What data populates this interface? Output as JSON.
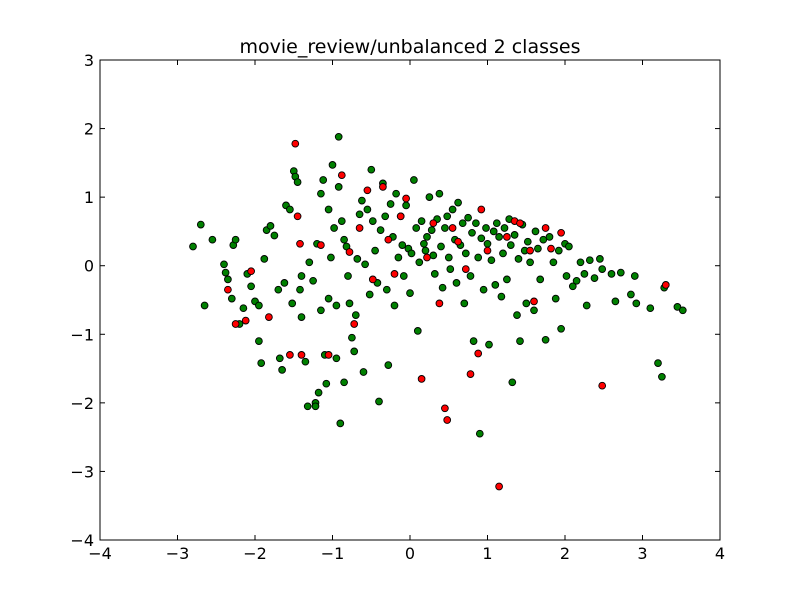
{
  "chart_data": {
    "type": "scatter",
    "title": "movie_review/unbalanced 2 classes",
    "xlabel": "",
    "ylabel": "",
    "xlim": [
      -4,
      4
    ],
    "ylim": [
      -4,
      3
    ],
    "xticks": [
      "−4",
      "−3",
      "−2",
      "−1",
      "0",
      "1",
      "2",
      "3",
      "4"
    ],
    "yticks": [
      "−4",
      "−3",
      "−2",
      "−1",
      "0",
      "1",
      "2",
      "3"
    ],
    "grid": false,
    "legend": "none",
    "colors": {
      "class_green": "#008000",
      "class_red": "#ff0000",
      "edge": "#000000"
    },
    "series": [
      {
        "color": "#008000",
        "points": [
          [
            -2.8,
            0.28
          ],
          [
            -2.7,
            0.6
          ],
          [
            -2.65,
            -0.58
          ],
          [
            -2.55,
            0.38
          ],
          [
            -2.4,
            0.02
          ],
          [
            -2.38,
            -0.1
          ],
          [
            -2.35,
            -0.2
          ],
          [
            -2.3,
            -0.48
          ],
          [
            -2.28,
            0.3
          ],
          [
            -2.25,
            0.38
          ],
          [
            -2.2,
            -0.85
          ],
          [
            -2.15,
            -0.62
          ],
          [
            -2.1,
            -0.12
          ],
          [
            -2.05,
            -0.3
          ],
          [
            -2.0,
            -0.52
          ],
          [
            -1.95,
            -0.58
          ],
          [
            -1.95,
            -1.1
          ],
          [
            -1.92,
            -1.42
          ],
          [
            -1.88,
            0.1
          ],
          [
            -1.85,
            0.52
          ],
          [
            -1.8,
            0.58
          ],
          [
            -1.75,
            0.44
          ],
          [
            -1.7,
            -0.35
          ],
          [
            -1.68,
            -1.35
          ],
          [
            -1.65,
            -1.52
          ],
          [
            -1.62,
            -0.25
          ],
          [
            -1.6,
            0.88
          ],
          [
            -1.55,
            0.82
          ],
          [
            -1.52,
            -0.55
          ],
          [
            -1.5,
            1.38
          ],
          [
            -1.48,
            1.3
          ],
          [
            -1.45,
            1.22
          ],
          [
            -1.42,
            -0.35
          ],
          [
            -1.4,
            -0.15
          ],
          [
            -1.4,
            -0.75
          ],
          [
            -1.35,
            -1.4
          ],
          [
            -1.32,
            -2.05
          ],
          [
            -1.3,
            0.05
          ],
          [
            -1.25,
            -0.22
          ],
          [
            -1.22,
            -2.0
          ],
          [
            -1.22,
            -2.05
          ],
          [
            -1.2,
            0.32
          ],
          [
            -1.18,
            -1.85
          ],
          [
            -1.15,
            -0.65
          ],
          [
            -1.15,
            1.05
          ],
          [
            -1.12,
            1.25
          ],
          [
            -1.1,
            -1.3
          ],
          [
            -1.08,
            -1.72
          ],
          [
            -1.05,
            0.82
          ],
          [
            -1.05,
            -0.48
          ],
          [
            -1.02,
            0.12
          ],
          [
            -1.0,
            1.47
          ],
          [
            -0.98,
            0.55
          ],
          [
            -0.95,
            -0.58
          ],
          [
            -0.95,
            -1.35
          ],
          [
            -0.92,
            1.88
          ],
          [
            -0.92,
            1.15
          ],
          [
            -0.9,
            -2.3
          ],
          [
            -0.88,
            0.65
          ],
          [
            -0.85,
            0.38
          ],
          [
            -0.85,
            -1.7
          ],
          [
            -0.82,
            0.28
          ],
          [
            -0.8,
            -0.15
          ],
          [
            -0.78,
            -0.55
          ],
          [
            -0.75,
            -1.05
          ],
          [
            -0.72,
            -1.25
          ],
          [
            -0.7,
            -0.72
          ],
          [
            -0.68,
            0.1
          ],
          [
            -0.65,
            0.75
          ],
          [
            -0.62,
            0.95
          ],
          [
            -0.6,
            -1.55
          ],
          [
            -0.58,
            0.02
          ],
          [
            -0.55,
            0.82
          ],
          [
            -0.52,
            -0.42
          ],
          [
            -0.5,
            1.4
          ],
          [
            -0.48,
            0.65
          ],
          [
            -0.45,
            0.22
          ],
          [
            -0.42,
            -0.25
          ],
          [
            -0.4,
            -1.98
          ],
          [
            -0.38,
            0.52
          ],
          [
            -0.35,
            1.2
          ],
          [
            -0.32,
            0.72
          ],
          [
            -0.3,
            -0.35
          ],
          [
            -0.28,
            -1.45
          ],
          [
            -0.25,
            0.9
          ],
          [
            -0.22,
            0.42
          ],
          [
            -0.2,
            -0.58
          ],
          [
            -0.18,
            1.05
          ],
          [
            -0.15,
            0.12
          ],
          [
            -0.12,
            0.72
          ],
          [
            -0.1,
            0.3
          ],
          [
            -0.08,
            -0.15
          ],
          [
            -0.05,
            0.88
          ],
          [
            -0.02,
            0.25
          ],
          [
            0.0,
            -0.4
          ],
          [
            0.02,
            0.18
          ],
          [
            0.05,
            1.25
          ],
          [
            0.08,
            0.55
          ],
          [
            0.1,
            -0.95
          ],
          [
            0.12,
            0.05
          ],
          [
            0.15,
            0.65
          ],
          [
            0.18,
            0.32
          ],
          [
            0.2,
            0.22
          ],
          [
            0.22,
            0.42
          ],
          [
            0.25,
            1.0
          ],
          [
            0.28,
            0.52
          ],
          [
            0.3,
            0.15
          ],
          [
            0.32,
            -0.12
          ],
          [
            0.35,
            0.68
          ],
          [
            0.38,
            1.05
          ],
          [
            0.4,
            0.28
          ],
          [
            0.42,
            -0.32
          ],
          [
            0.45,
            0.55
          ],
          [
            0.48,
            0.72
          ],
          [
            0.5,
            0.12
          ],
          [
            0.52,
            -0.05
          ],
          [
            0.55,
            0.82
          ],
          [
            0.58,
            0.38
          ],
          [
            0.6,
            -0.25
          ],
          [
            0.62,
            0.92
          ],
          [
            0.65,
            0.3
          ],
          [
            0.68,
            0.62
          ],
          [
            0.7,
            -0.55
          ],
          [
            0.72,
            0.18
          ],
          [
            0.75,
            0.7
          ],
          [
            0.78,
            -0.15
          ],
          [
            0.8,
            0.48
          ],
          [
            0.82,
            -1.1
          ],
          [
            0.85,
            0.62
          ],
          [
            0.88,
            0.12
          ],
          [
            0.9,
            -2.45
          ],
          [
            0.92,
            0.4
          ],
          [
            0.95,
            -0.35
          ],
          [
            0.98,
            0.55
          ],
          [
            1.0,
            0.32
          ],
          [
            1.02,
            -1.15
          ],
          [
            1.05,
            0.08
          ],
          [
            1.08,
            0.5
          ],
          [
            1.1,
            -0.28
          ],
          [
            1.12,
            0.62
          ],
          [
            1.15,
            0.42
          ],
          [
            1.18,
            -0.45
          ],
          [
            1.2,
            0.18
          ],
          [
            1.22,
            0.55
          ],
          [
            1.25,
            -0.2
          ],
          [
            1.28,
            0.68
          ],
          [
            1.3,
            0.3
          ],
          [
            1.32,
            -1.7
          ],
          [
            1.35,
            0.45
          ],
          [
            1.38,
            -0.72
          ],
          [
            1.4,
            0.1
          ],
          [
            1.42,
            -1.1
          ],
          [
            1.45,
            0.6
          ],
          [
            1.48,
            0.22
          ],
          [
            1.5,
            -0.55
          ],
          [
            1.52,
            0.35
          ],
          [
            1.55,
            0.05
          ],
          [
            1.6,
            -0.65
          ],
          [
            1.62,
            0.5
          ],
          [
            1.65,
            0.25
          ],
          [
            1.68,
            -0.2
          ],
          [
            1.72,
            0.38
          ],
          [
            1.75,
            -1.08
          ],
          [
            1.8,
            0.42
          ],
          [
            1.85,
            0.05
          ],
          [
            1.88,
            -0.48
          ],
          [
            1.92,
            0.22
          ],
          [
            1.95,
            -0.92
          ],
          [
            2.0,
            0.32
          ],
          [
            2.02,
            -0.15
          ],
          [
            2.05,
            0.28
          ],
          [
            2.1,
            -0.3
          ],
          [
            2.15,
            -0.22
          ],
          [
            2.2,
            0.05
          ],
          [
            2.25,
            -0.12
          ],
          [
            2.28,
            -0.58
          ],
          [
            2.32,
            0.08
          ],
          [
            2.38,
            -0.18
          ],
          [
            2.45,
            0.1
          ],
          [
            2.48,
            -0.05
          ],
          [
            2.6,
            -0.12
          ],
          [
            2.65,
            -0.52
          ],
          [
            2.72,
            -0.1
          ],
          [
            2.85,
            -0.42
          ],
          [
            2.9,
            -0.15
          ],
          [
            2.92,
            -0.55
          ],
          [
            3.1,
            -0.62
          ],
          [
            3.2,
            -1.42
          ],
          [
            3.25,
            -1.62
          ],
          [
            3.28,
            -0.32
          ],
          [
            3.45,
            -0.6
          ],
          [
            3.52,
            -0.65
          ]
        ]
      },
      {
        "color": "#ff0000",
        "points": [
          [
            -2.35,
            -0.35
          ],
          [
            -2.25,
            -0.85
          ],
          [
            -2.12,
            -0.8
          ],
          [
            -2.05,
            -0.08
          ],
          [
            -1.82,
            -0.75
          ],
          [
            -1.55,
            -1.3
          ],
          [
            -1.48,
            1.78
          ],
          [
            -1.45,
            0.72
          ],
          [
            -1.42,
            0.32
          ],
          [
            -1.4,
            -1.3
          ],
          [
            -1.15,
            0.3
          ],
          [
            -1.05,
            -1.3
          ],
          [
            -0.88,
            1.32
          ],
          [
            -0.78,
            0.2
          ],
          [
            -0.72,
            -0.85
          ],
          [
            -0.65,
            0.55
          ],
          [
            -0.55,
            1.1
          ],
          [
            -0.48,
            -0.2
          ],
          [
            -0.35,
            1.15
          ],
          [
            -0.28,
            0.38
          ],
          [
            -0.2,
            -0.12
          ],
          [
            -0.12,
            0.72
          ],
          [
            -0.05,
            0.98
          ],
          [
            0.15,
            -1.65
          ],
          [
            0.22,
            0.12
          ],
          [
            0.3,
            0.62
          ],
          [
            0.38,
            -0.55
          ],
          [
            0.45,
            -2.08
          ],
          [
            0.48,
            -2.25
          ],
          [
            0.55,
            0.55
          ],
          [
            0.62,
            0.35
          ],
          [
            0.72,
            -0.05
          ],
          [
            0.78,
            -1.58
          ],
          [
            0.88,
            -1.28
          ],
          [
            0.92,
            0.82
          ],
          [
            1.0,
            0.22
          ],
          [
            1.15,
            -3.22
          ],
          [
            1.25,
            0.42
          ],
          [
            1.35,
            0.65
          ],
          [
            1.42,
            0.62
          ],
          [
            1.55,
            0.22
          ],
          [
            1.6,
            -0.52
          ],
          [
            1.75,
            0.55
          ],
          [
            1.82,
            0.25
          ],
          [
            1.95,
            0.48
          ],
          [
            2.48,
            -1.75
          ],
          [
            3.3,
            -0.28
          ]
        ]
      }
    ]
  }
}
